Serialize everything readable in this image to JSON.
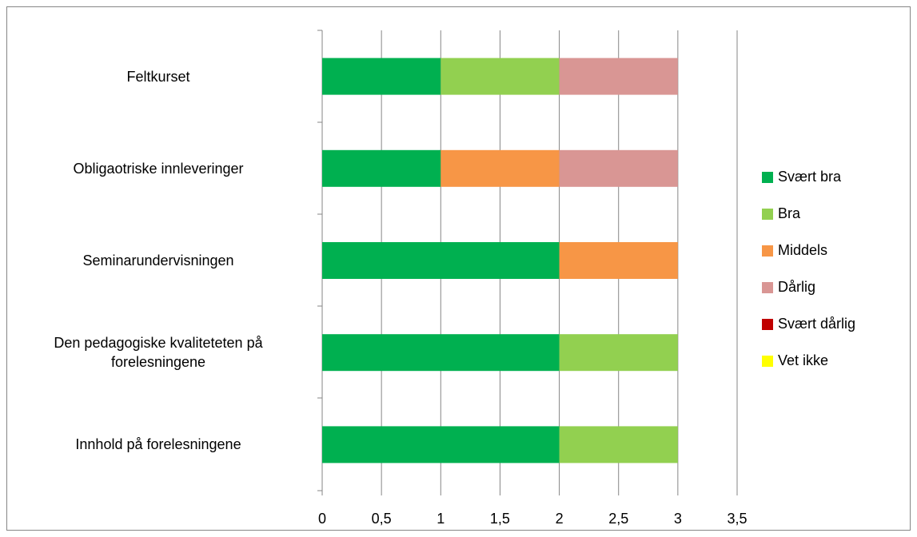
{
  "chart_data": {
    "type": "stacked_bar_horizontal",
    "categories": [
      "Feltkurset",
      "Obligaotriske innleveringer",
      "Seminarundervisningen",
      "Den pedagogiske kvaliteteten på forelesningene",
      "Innhold på forelesningene"
    ],
    "series": [
      {
        "name": "Svært bra",
        "color": "#00b050",
        "values": [
          1,
          1,
          2,
          2,
          2
        ]
      },
      {
        "name": "Bra",
        "color": "#92d050",
        "values": [
          1,
          0,
          0,
          1,
          1
        ]
      },
      {
        "name": "Middels",
        "color": "#f79646",
        "values": [
          0,
          1,
          1,
          0,
          0
        ]
      },
      {
        "name": "Dårlig",
        "color": "#d99694",
        "values": [
          1,
          1,
          0,
          0,
          0
        ]
      },
      {
        "name": "Svært dårlig",
        "color": "#c00000",
        "values": [
          0,
          0,
          0,
          0,
          0
        ]
      },
      {
        "name": "Vet ikke",
        "color": "#ffff00",
        "values": [
          0,
          0,
          0,
          0,
          0
        ]
      }
    ],
    "xlim": [
      0,
      3.5
    ],
    "xticks": [
      0,
      {
        "value": 0.5,
        "label": "0,5"
      },
      1,
      {
        "value": 1.5,
        "label": "1,5"
      },
      2,
      {
        "value": 2.5,
        "label": "2,5"
      },
      3,
      {
        "value": 3.5,
        "label": "3,5"
      }
    ],
    "grid": true,
    "legend": "right"
  }
}
